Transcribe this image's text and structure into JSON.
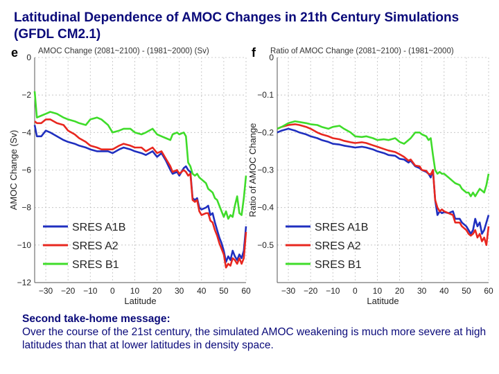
{
  "slide": {
    "title": "Latitudinal Dependence of AMOC Changes in 21th Century Simulations (GFDL CM2.1)",
    "message_heading": "Second take-home message:",
    "message_body": "Over the course of the 21st century, the simulated AMOC weakening is much more severe at high latitudes than that at lower latitudes in density space."
  },
  "colors": {
    "a1b": "#1f2fbf",
    "a2": "#e8271f",
    "b1": "#3fdc2a",
    "grid": "#bdbdbd",
    "axis": "#555555",
    "text": "#0a0a7a"
  },
  "chart_data": [
    {
      "panel": "e",
      "type": "line",
      "title": "AMOC Change (2081~2100) - (1981~2000)  (Sv)",
      "xlabel": "Latitude",
      "ylabel": "AMOC Change (Sv)",
      "xlim": [
        -35,
        60
      ],
      "ylim": [
        -12,
        0
      ],
      "xticks": [
        -30,
        -20,
        -10,
        0,
        10,
        20,
        30,
        40,
        50,
        60
      ],
      "yticks": [
        0,
        -2,
        -4,
        -6,
        -8,
        -10,
        -12
      ],
      "xtick_labels": [
        "−30",
        "−20",
        "−10",
        "0",
        "10",
        "20",
        "30",
        "40",
        "50",
        "60"
      ],
      "ytick_labels": [
        "0",
        "−2",
        "−4",
        "−6",
        "−8",
        "−10",
        "−12"
      ],
      "legend_position": "bottom-left",
      "series": [
        {
          "name": "SRES A1B",
          "x": [
            -35,
            -34,
            -32,
            -30,
            -28,
            -25,
            -22,
            -20,
            -17,
            -15,
            -12,
            -10,
            -7,
            -5,
            -2,
            0,
            3,
            5,
            8,
            10,
            13,
            15,
            18,
            20,
            22,
            24,
            26,
            27,
            29,
            30,
            32,
            33,
            34,
            35,
            36,
            37,
            38,
            39,
            40,
            42,
            43,
            44,
            45,
            46,
            47,
            48,
            49,
            50,
            51,
            52,
            53,
            54,
            55,
            56,
            57,
            58,
            59,
            60
          ],
          "y": [
            -3.6,
            -4.2,
            -4.2,
            -3.9,
            -4.0,
            -4.2,
            -4.4,
            -4.5,
            -4.6,
            -4.7,
            -4.8,
            -4.9,
            -5.0,
            -5.0,
            -5.0,
            -5.1,
            -4.9,
            -4.8,
            -4.9,
            -5.0,
            -5.1,
            -5.2,
            -5.0,
            -5.3,
            -5.1,
            -5.5,
            -6.0,
            -6.2,
            -6.1,
            -6.3,
            -5.9,
            -5.8,
            -6.0,
            -6.1,
            -7.5,
            -7.6,
            -7.5,
            -8.0,
            -8.1,
            -8.0,
            -7.9,
            -8.4,
            -8.3,
            -8.8,
            -9.2,
            -9.6,
            -9.9,
            -10.3,
            -10.9,
            -10.6,
            -10.8,
            -10.3,
            -10.6,
            -10.8,
            -10.5,
            -10.7,
            -10.3,
            -9.0
          ]
        },
        {
          "name": "SRES A2",
          "x": [
            -35,
            -34,
            -32,
            -30,
            -28,
            -25,
            -22,
            -20,
            -17,
            -15,
            -12,
            -10,
            -7,
            -5,
            -2,
            0,
            3,
            5,
            8,
            10,
            13,
            15,
            18,
            20,
            22,
            24,
            26,
            27,
            29,
            30,
            32,
            33,
            34,
            35,
            36,
            37,
            38,
            39,
            40,
            42,
            43,
            44,
            45,
            46,
            47,
            48,
            49,
            50,
            51,
            52,
            53,
            54,
            55,
            56,
            57,
            58,
            59,
            60
          ],
          "y": [
            -3.4,
            -3.5,
            -3.5,
            -3.3,
            -3.3,
            -3.5,
            -3.6,
            -3.9,
            -4.1,
            -4.3,
            -4.5,
            -4.7,
            -4.8,
            -4.9,
            -4.9,
            -4.9,
            -4.7,
            -4.6,
            -4.7,
            -4.8,
            -4.8,
            -5.0,
            -4.8,
            -5.1,
            -5.0,
            -5.4,
            -5.8,
            -6.1,
            -6.0,
            -6.2,
            -6.0,
            -6.1,
            -6.3,
            -6.2,
            -7.6,
            -7.7,
            -7.6,
            -8.2,
            -8.4,
            -8.3,
            -8.3,
            -8.7,
            -8.8,
            -9.2,
            -9.5,
            -9.9,
            -10.2,
            -10.5,
            -11.2,
            -11.0,
            -11.1,
            -10.7,
            -10.8,
            -11.0,
            -10.7,
            -11.0,
            -10.7,
            -9.3
          ]
        },
        {
          "name": "SRES B1",
          "x": [
            -35,
            -34,
            -32,
            -30,
            -28,
            -25,
            -22,
            -20,
            -17,
            -15,
            -12,
            -10,
            -7,
            -5,
            -2,
            0,
            3,
            5,
            8,
            10,
            13,
            15,
            18,
            20,
            22,
            24,
            26,
            27,
            29,
            30,
            32,
            33,
            34,
            35,
            36,
            37,
            38,
            39,
            40,
            42,
            43,
            44,
            45,
            46,
            47,
            48,
            49,
            50,
            51,
            52,
            53,
            54,
            55,
            56,
            57,
            58,
            59,
            60
          ],
          "y": [
            -1.8,
            -3.2,
            -3.1,
            -3.0,
            -2.9,
            -3.0,
            -3.2,
            -3.3,
            -3.4,
            -3.5,
            -3.6,
            -3.3,
            -3.2,
            -3.3,
            -3.6,
            -4.0,
            -3.9,
            -3.8,
            -3.8,
            -4.0,
            -4.1,
            -4.0,
            -3.8,
            -4.1,
            -4.2,
            -4.3,
            -4.4,
            -4.1,
            -4.0,
            -4.1,
            -4.0,
            -4.2,
            -5.6,
            -5.8,
            -6.2,
            -6.3,
            -6.2,
            -6.4,
            -6.5,
            -6.7,
            -7.0,
            -7.1,
            -7.2,
            -7.5,
            -7.6,
            -7.9,
            -8.2,
            -8.5,
            -8.2,
            -8.6,
            -8.4,
            -8.5,
            -7.9,
            -7.4,
            -8.3,
            -8.4,
            -7.5,
            -6.3
          ]
        }
      ]
    },
    {
      "panel": "f",
      "type": "line",
      "title": "Ratio of AMOC Change (2081~2100) - (1981~2000)",
      "xlabel": "Latitude",
      "ylabel": "Ratio of AMOC Change",
      "xlim": [
        -35,
        60
      ],
      "ylim": [
        -0.6,
        0
      ],
      "xticks": [
        -30,
        -20,
        -10,
        0,
        10,
        20,
        30,
        40,
        50,
        60
      ],
      "yticks": [
        0,
        -0.1,
        -0.2,
        -0.3,
        -0.4,
        -0.5
      ],
      "xtick_labels": [
        "−30",
        "−20",
        "−10",
        "0",
        "10",
        "20",
        "30",
        "40",
        "50",
        "60"
      ],
      "ytick_labels": [
        "0",
        "−0.1",
        "−0.2",
        "−0.3",
        "−0.4",
        "−0.5"
      ],
      "legend_position": "bottom-left",
      "series": [
        {
          "name": "SRES A1B",
          "x": [
            -35,
            -33,
            -30,
            -27,
            -25,
            -22,
            -20,
            -17,
            -15,
            -12,
            -10,
            -7,
            -5,
            -2,
            0,
            3,
            5,
            8,
            10,
            13,
            15,
            18,
            20,
            22,
            24,
            25,
            27,
            29,
            30,
            32,
            33,
            34,
            35,
            36,
            37,
            38,
            39,
            40,
            42,
            44,
            45,
            47,
            48,
            50,
            51,
            52,
            53,
            54,
            55,
            56,
            57,
            58,
            59,
            60
          ],
          "y": [
            -0.2,
            -0.195,
            -0.19,
            -0.195,
            -0.2,
            -0.205,
            -0.21,
            -0.215,
            -0.22,
            -0.225,
            -0.23,
            -0.232,
            -0.235,
            -0.238,
            -0.24,
            -0.238,
            -0.24,
            -0.245,
            -0.25,
            -0.255,
            -0.26,
            -0.262,
            -0.27,
            -0.272,
            -0.28,
            -0.275,
            -0.29,
            -0.295,
            -0.3,
            -0.305,
            -0.31,
            -0.32,
            -0.3,
            -0.38,
            -0.42,
            -0.41,
            -0.415,
            -0.412,
            -0.415,
            -0.41,
            -0.43,
            -0.43,
            -0.44,
            -0.45,
            -0.46,
            -0.47,
            -0.46,
            -0.43,
            -0.45,
            -0.44,
            -0.47,
            -0.46,
            -0.44,
            -0.42
          ]
        },
        {
          "name": "SRES A2",
          "x": [
            -35,
            -33,
            -30,
            -27,
            -25,
            -22,
            -20,
            -17,
            -15,
            -12,
            -10,
            -7,
            -5,
            -2,
            0,
            3,
            5,
            8,
            10,
            13,
            15,
            18,
            20,
            22,
            24,
            25,
            27,
            29,
            30,
            32,
            33,
            34,
            35,
            36,
            37,
            38,
            39,
            40,
            42,
            44,
            45,
            47,
            48,
            50,
            51,
            52,
            53,
            54,
            55,
            56,
            57,
            58,
            59,
            60
          ],
          "y": [
            -0.19,
            -0.185,
            -0.18,
            -0.178,
            -0.18,
            -0.185,
            -0.19,
            -0.2,
            -0.205,
            -0.21,
            -0.215,
            -0.218,
            -0.222,
            -0.226,
            -0.228,
            -0.226,
            -0.228,
            -0.234,
            -0.238,
            -0.244,
            -0.248,
            -0.252,
            -0.258,
            -0.265,
            -0.275,
            -0.272,
            -0.288,
            -0.29,
            -0.3,
            -0.302,
            -0.31,
            -0.312,
            -0.3,
            -0.38,
            -0.4,
            -0.41,
            -0.405,
            -0.41,
            -0.415,
            -0.42,
            -0.44,
            -0.44,
            -0.45,
            -0.46,
            -0.47,
            -0.475,
            -0.47,
            -0.46,
            -0.48,
            -0.47,
            -0.49,
            -0.48,
            -0.5,
            -0.45
          ]
        },
        {
          "name": "SRES B1",
          "x": [
            -35,
            -33,
            -30,
            -27,
            -25,
            -22,
            -20,
            -17,
            -15,
            -12,
            -10,
            -7,
            -5,
            -2,
            0,
            3,
            5,
            8,
            10,
            13,
            15,
            18,
            20,
            22,
            24,
            25,
            27,
            29,
            30,
            32,
            33,
            34,
            35,
            36,
            37,
            38,
            39,
            40,
            42,
            44,
            45,
            47,
            48,
            50,
            51,
            52,
            53,
            54,
            55,
            56,
            57,
            58,
            59,
            60
          ],
          "y": [
            -0.19,
            -0.185,
            -0.175,
            -0.17,
            -0.172,
            -0.175,
            -0.178,
            -0.18,
            -0.185,
            -0.19,
            -0.185,
            -0.182,
            -0.19,
            -0.2,
            -0.21,
            -0.212,
            -0.21,
            -0.215,
            -0.22,
            -0.218,
            -0.22,
            -0.215,
            -0.225,
            -0.23,
            -0.22,
            -0.215,
            -0.2,
            -0.2,
            -0.205,
            -0.21,
            -0.22,
            -0.215,
            -0.26,
            -0.3,
            -0.31,
            -0.305,
            -0.31,
            -0.31,
            -0.32,
            -0.33,
            -0.335,
            -0.34,
            -0.35,
            -0.36,
            -0.36,
            -0.37,
            -0.36,
            -0.37,
            -0.36,
            -0.35,
            -0.355,
            -0.36,
            -0.34,
            -0.31
          ]
        }
      ]
    }
  ]
}
